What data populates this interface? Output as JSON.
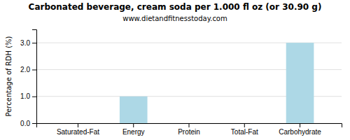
{
  "chart_data": {
    "type": "bar",
    "title": "Carbonated beverage, cream soda per 1.000 fl oz (or 30.90 g)",
    "subtitle": "www.dietandfitnesstoday.com",
    "ylabel": "Percentage of RDH (%)",
    "categories": [
      "Saturated-Fat",
      "Energy",
      "Protein",
      "Total-Fat",
      "Carbohydrate"
    ],
    "values": [
      0.0,
      1.0,
      0.0,
      0.0,
      3.0
    ],
    "color": "#add8e6",
    "ylim": [
      0,
      3.5
    ],
    "yticks": [
      {
        "value": 0.0,
        "label": "0.0"
      },
      {
        "value": 1.0,
        "label": "1.0"
      },
      {
        "value": 2.0,
        "label": "2.0"
      },
      {
        "value": 3.0,
        "label": "3.0"
      }
    ],
    "grid": true
  }
}
